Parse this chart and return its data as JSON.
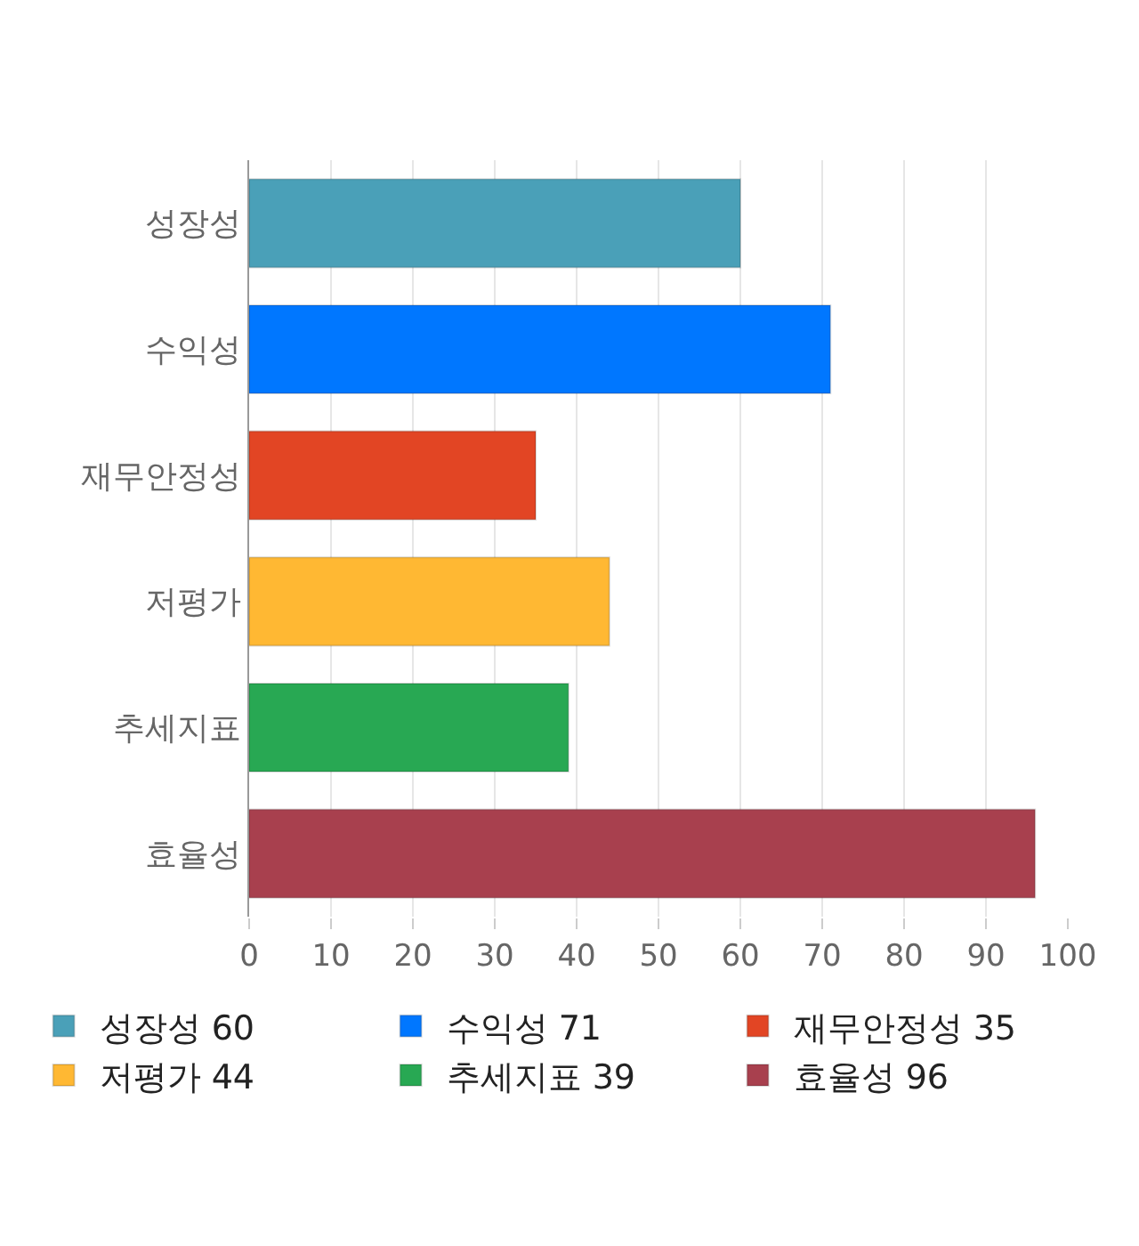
{
  "chart_data": {
    "type": "bar",
    "orientation": "horizontal",
    "categories": [
      "성장성",
      "수익성",
      "재무안정성",
      "저평가",
      "추세지표",
      "효율성"
    ],
    "series": [
      {
        "name": "성장성 60",
        "color": "#4aa0b8",
        "values": [
          60,
          null,
          null,
          null,
          null,
          null
        ]
      },
      {
        "name": "수익성 71",
        "color": "#0077ff",
        "values": [
          null,
          71,
          null,
          null,
          null,
          null
        ]
      },
      {
        "name": "재무안정성 35",
        "color": "#e24524",
        "values": [
          null,
          null,
          35,
          null,
          null,
          null
        ]
      },
      {
        "name": "저평가 44",
        "color": "#ffb833",
        "values": [
          null,
          null,
          null,
          44,
          null,
          null
        ]
      },
      {
        "name": "추세지표 39",
        "color": "#28a853",
        "values": [
          null,
          null,
          null,
          null,
          39,
          null
        ]
      },
      {
        "name": "효율성 96",
        "color": "#a8404e",
        "values": [
          null,
          null,
          null,
          null,
          null,
          96
        ]
      }
    ],
    "xlim": [
      0,
      100
    ],
    "xticks": [
      0,
      10,
      20,
      30,
      40,
      50,
      60,
      70,
      80,
      90,
      100
    ],
    "grid": "x",
    "legend": "bottom"
  }
}
